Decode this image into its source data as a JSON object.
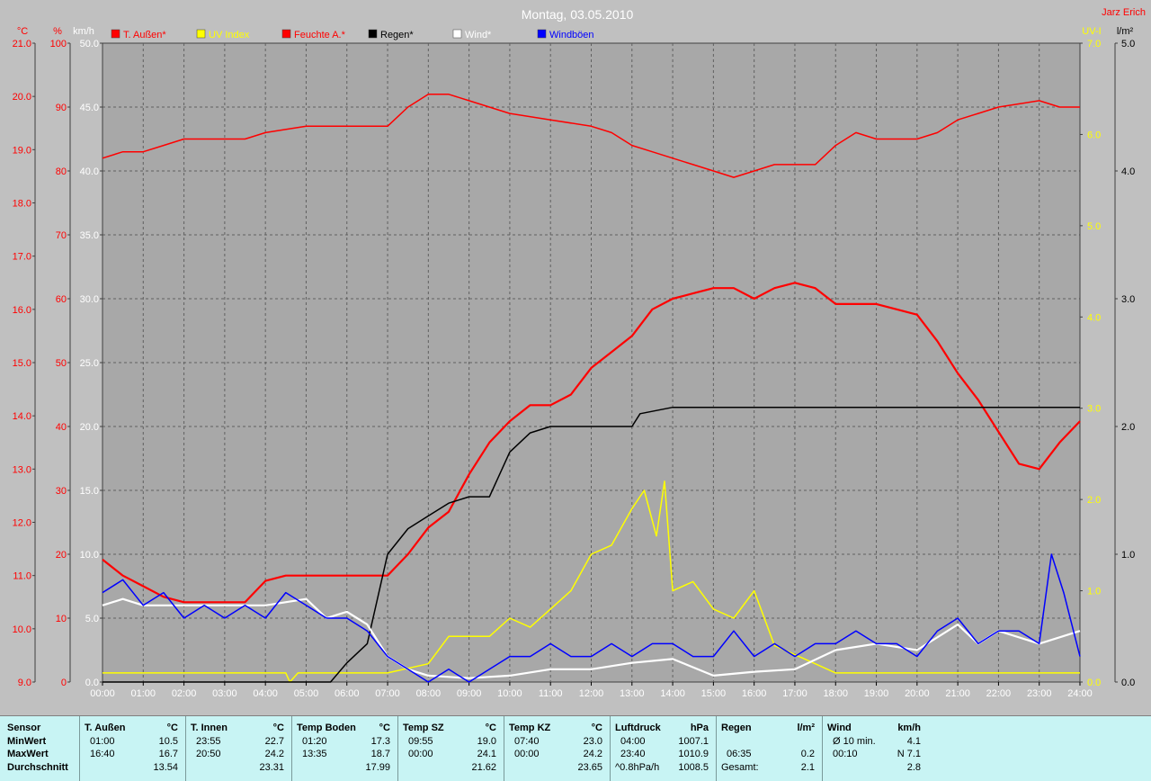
{
  "title": "Montag, 03.05.2010",
  "author": "Jarz Erich",
  "axis_units": {
    "temp": "°C",
    "humidity": "%",
    "wind": "km/h",
    "uv": "UV-I",
    "rain": "l/m²"
  },
  "legend": [
    {
      "label": "T. Außen*",
      "color": "#ff0000"
    },
    {
      "label": "UV Index",
      "color": "#ffff00"
    },
    {
      "label": "Feuchte A.*",
      "color": "#ff0000"
    },
    {
      "label": "Regen*",
      "color": "#000000"
    },
    {
      "label": "Wind*",
      "color": "#ffffff"
    },
    {
      "label": "Windböen",
      "color": "#0000ff"
    }
  ],
  "chart_data": {
    "type": "line",
    "title": "Montag, 03.05.2010",
    "x_ticks": [
      "00:00",
      "01:00",
      "02:00",
      "03:00",
      "04:00",
      "05:00",
      "06:00",
      "07:00",
      "08:00",
      "09:00",
      "10:00",
      "11:00",
      "12:00",
      "13:00",
      "14:00",
      "15:00",
      "16:00",
      "17:00",
      "18:00",
      "19:00",
      "20:00",
      "21:00",
      "22:00",
      "23:00",
      "24:00"
    ],
    "axes": {
      "temp": {
        "range": [
          9.0,
          21.0
        ],
        "ticks": [
          "21.0",
          "20.0",
          "19.0",
          "18.0",
          "17.0",
          "16.0",
          "15.0",
          "14.0",
          "13.0",
          "12.0",
          "11.0",
          "10.0",
          "9.0"
        ]
      },
      "humidity": {
        "range": [
          0,
          100
        ],
        "ticks": [
          "100",
          "90",
          "80",
          "70",
          "60",
          "50",
          "40",
          "30",
          "20",
          "10",
          "0"
        ]
      },
      "wind": {
        "range": [
          0,
          50
        ],
        "ticks": [
          "50.0",
          "45.0",
          "40.0",
          "35.0",
          "30.0",
          "25.0",
          "20.0",
          "15.0",
          "10.0",
          "5.0",
          "0.0"
        ]
      },
      "uv": {
        "range": [
          0,
          7
        ],
        "ticks": [
          "7.0",
          "6.0",
          "5.0",
          "4.0",
          "3.0",
          "2.0",
          "1.0",
          "0.0"
        ]
      },
      "rain": {
        "range": [
          0,
          5
        ],
        "ticks": [
          "5.0",
          "4.0",
          "3.0",
          "2.0",
          "1.0",
          "0.0"
        ]
      }
    },
    "grid": true,
    "legend_position": "top",
    "series": [
      {
        "name": "T. Außen*",
        "axis": "temp",
        "color": "#ff0000",
        "points": [
          [
            0,
            11.3
          ],
          [
            0.5,
            11.0
          ],
          [
            1,
            10.8
          ],
          [
            1.5,
            10.6
          ],
          [
            2,
            10.5
          ],
          [
            3,
            10.5
          ],
          [
            3.5,
            10.5
          ],
          [
            4,
            10.9
          ],
          [
            4.5,
            11.0
          ],
          [
            5,
            11.0
          ],
          [
            6,
            11.0
          ],
          [
            7,
            11.0
          ],
          [
            7.5,
            11.4
          ],
          [
            8,
            11.9
          ],
          [
            8.5,
            12.2
          ],
          [
            9,
            12.9
          ],
          [
            9.5,
            13.5
          ],
          [
            10,
            13.9
          ],
          [
            10.5,
            14.2
          ],
          [
            11,
            14.2
          ],
          [
            11.5,
            14.4
          ],
          [
            12,
            14.9
          ],
          [
            12.5,
            15.2
          ],
          [
            13,
            15.5
          ],
          [
            13.5,
            16.0
          ],
          [
            14,
            16.2
          ],
          [
            14.5,
            16.3
          ],
          [
            15,
            16.4
          ],
          [
            15.5,
            16.4
          ],
          [
            16,
            16.2
          ],
          [
            16.5,
            16.4
          ],
          [
            17,
            16.5
          ],
          [
            17.5,
            16.4
          ],
          [
            18,
            16.1
          ],
          [
            18.5,
            16.1
          ],
          [
            19,
            16.1
          ],
          [
            19.5,
            16.0
          ],
          [
            20,
            15.9
          ],
          [
            20.5,
            15.4
          ],
          [
            21,
            14.8
          ],
          [
            21.5,
            14.3
          ],
          [
            22,
            13.7
          ],
          [
            22.5,
            13.1
          ],
          [
            23,
            13.0
          ],
          [
            23.5,
            13.5
          ],
          [
            24,
            13.9
          ]
        ]
      },
      {
        "name": "Feuchte A.*",
        "axis": "humidity",
        "color": "#ff0000",
        "points": [
          [
            0,
            82
          ],
          [
            0.5,
            83
          ],
          [
            1,
            83
          ],
          [
            1.5,
            84
          ],
          [
            2,
            85
          ],
          [
            3,
            85
          ],
          [
            3.5,
            85
          ],
          [
            4,
            86
          ],
          [
            5,
            87
          ],
          [
            6,
            87
          ],
          [
            7,
            87
          ],
          [
            7.5,
            90
          ],
          [
            8,
            92
          ],
          [
            8.5,
            92
          ],
          [
            9,
            91
          ],
          [
            10,
            89
          ],
          [
            11,
            88
          ],
          [
            12,
            87
          ],
          [
            12.5,
            86
          ],
          [
            13,
            84
          ],
          [
            13.5,
            83
          ],
          [
            14,
            82
          ],
          [
            14.5,
            81
          ],
          [
            15,
            80
          ],
          [
            15.5,
            79
          ],
          [
            16,
            80
          ],
          [
            16.5,
            81
          ],
          [
            17,
            81
          ],
          [
            17.5,
            81
          ],
          [
            18,
            84
          ],
          [
            18.5,
            86
          ],
          [
            19,
            85
          ],
          [
            19.5,
            85
          ],
          [
            20,
            85
          ],
          [
            20.5,
            86
          ],
          [
            21,
            88
          ],
          [
            21.5,
            89
          ],
          [
            22,
            90
          ],
          [
            23,
            91
          ],
          [
            23.5,
            90
          ],
          [
            24,
            90
          ]
        ]
      },
      {
        "name": "UV Index",
        "axis": "uv",
        "color": "#ffff00",
        "points": [
          [
            0,
            0.1
          ],
          [
            4.5,
            0.1
          ],
          [
            4.6,
            0.0
          ],
          [
            4.8,
            0.1
          ],
          [
            7,
            0.1
          ],
          [
            8,
            0.2
          ],
          [
            8.5,
            0.5
          ],
          [
            9,
            0.5
          ],
          [
            9.5,
            0.5
          ],
          [
            10,
            0.7
          ],
          [
            10.5,
            0.6
          ],
          [
            11,
            0.8
          ],
          [
            11.5,
            1.0
          ],
          [
            12,
            1.4
          ],
          [
            12.5,
            1.5
          ],
          [
            13,
            1.9
          ],
          [
            13.3,
            2.1
          ],
          [
            13.6,
            1.6
          ],
          [
            13.8,
            2.2
          ],
          [
            14,
            1.0
          ],
          [
            14.5,
            1.1
          ],
          [
            15,
            0.8
          ],
          [
            15.5,
            0.7
          ],
          [
            16,
            1.0
          ],
          [
            16.5,
            0.4
          ],
          [
            17,
            0.3
          ],
          [
            17.5,
            0.2
          ],
          [
            18,
            0.1
          ],
          [
            19,
            0.1
          ],
          [
            20,
            0.1
          ],
          [
            21,
            0.1
          ],
          [
            22,
            0.1
          ],
          [
            23,
            0.1
          ],
          [
            24,
            0.1
          ]
        ]
      },
      {
        "name": "Regen*",
        "axis": "rain",
        "color": "#000000",
        "points": [
          [
            0,
            0
          ],
          [
            5.6,
            0
          ],
          [
            6,
            0.15
          ],
          [
            6.5,
            0.3
          ],
          [
            7,
            1.0
          ],
          [
            7.5,
            1.2
          ],
          [
            8,
            1.3
          ],
          [
            8.5,
            1.4
          ],
          [
            9,
            1.45
          ],
          [
            9.5,
            1.45
          ],
          [
            10,
            1.8
          ],
          [
            10.5,
            1.95
          ],
          [
            11,
            2.0
          ],
          [
            12,
            2.0
          ],
          [
            13,
            2.0
          ],
          [
            13.2,
            2.1
          ],
          [
            14,
            2.15
          ],
          [
            24,
            2.15
          ]
        ]
      },
      {
        "name": "Wind*",
        "axis": "wind",
        "color": "#ffffff",
        "points": [
          [
            0,
            6
          ],
          [
            0.5,
            6.5
          ],
          [
            1,
            6
          ],
          [
            2,
            6
          ],
          [
            3,
            6
          ],
          [
            4,
            6
          ],
          [
            5,
            6.5
          ],
          [
            5.5,
            5
          ],
          [
            6,
            5.5
          ],
          [
            6.5,
            4.5
          ],
          [
            7,
            2
          ],
          [
            7.5,
            1
          ],
          [
            8,
            0.5
          ],
          [
            9,
            0.3
          ],
          [
            10,
            0.5
          ],
          [
            11,
            1
          ],
          [
            12,
            1
          ],
          [
            13,
            1.5
          ],
          [
            14,
            1.8
          ],
          [
            15,
            0.5
          ],
          [
            16,
            0.8
          ],
          [
            17,
            1
          ],
          [
            18,
            2.5
          ],
          [
            19,
            3
          ],
          [
            20,
            2.5
          ],
          [
            21,
            4.5
          ],
          [
            21.5,
            3
          ],
          [
            22,
            4
          ],
          [
            23,
            3
          ],
          [
            24,
            4
          ]
        ]
      },
      {
        "name": "Windböen",
        "axis": "wind",
        "color": "#0000ff",
        "points": [
          [
            0,
            7
          ],
          [
            0.5,
            8
          ],
          [
            1,
            6
          ],
          [
            1.5,
            7
          ],
          [
            2,
            5
          ],
          [
            2.5,
            6
          ],
          [
            3,
            5
          ],
          [
            3.5,
            6
          ],
          [
            4,
            5
          ],
          [
            4.5,
            7
          ],
          [
            5,
            6
          ],
          [
            5.5,
            5
          ],
          [
            6,
            5
          ],
          [
            6.5,
            4
          ],
          [
            7,
            2
          ],
          [
            7.5,
            1
          ],
          [
            8,
            0
          ],
          [
            8.5,
            1
          ],
          [
            9,
            0
          ],
          [
            9.5,
            1
          ],
          [
            10,
            2
          ],
          [
            10.5,
            2
          ],
          [
            11,
            3
          ],
          [
            11.5,
            2
          ],
          [
            12,
            2
          ],
          [
            12.5,
            3
          ],
          [
            13,
            2
          ],
          [
            13.5,
            3
          ],
          [
            14,
            3
          ],
          [
            14.5,
            2
          ],
          [
            15,
            2
          ],
          [
            15.5,
            4
          ],
          [
            16,
            2
          ],
          [
            16.5,
            3
          ],
          [
            17,
            2
          ],
          [
            17.5,
            3
          ],
          [
            18,
            3
          ],
          [
            18.5,
            4
          ],
          [
            19,
            3
          ],
          [
            19.5,
            3
          ],
          [
            20,
            2
          ],
          [
            20.5,
            4
          ],
          [
            21,
            5
          ],
          [
            21.5,
            3
          ],
          [
            22,
            4
          ],
          [
            22.5,
            4
          ],
          [
            23,
            3
          ],
          [
            23.3,
            10
          ],
          [
            23.6,
            7
          ],
          [
            24,
            2
          ]
        ]
      }
    ]
  },
  "stats": {
    "row_labels": [
      "Sensor",
      "MinWert",
      "MaxWert",
      "Durchschnitt"
    ],
    "columns": [
      {
        "name": "T. Außen",
        "unit": "°C",
        "min_time": "01:00",
        "min_val": "10.5",
        "max_time": "16:40",
        "max_val": "16.7",
        "avg_label": "",
        "avg": "13.54"
      },
      {
        "name": "T. Innen",
        "unit": "°C",
        "min_time": "23:55",
        "min_val": "22.7",
        "max_time": "20:50",
        "max_val": "24.2",
        "avg_label": "",
        "avg": "23.31"
      },
      {
        "name": "Temp Boden",
        "unit": "°C",
        "min_time": "01:20",
        "min_val": "17.3",
        "max_time": "13:35",
        "max_val": "18.7",
        "avg_label": "",
        "avg": "17.99"
      },
      {
        "name": "Temp SZ",
        "unit": "°C",
        "min_time": "09:55",
        "min_val": "19.0",
        "max_time": "00:00",
        "max_val": "24.1",
        "avg_label": "",
        "avg": "21.62"
      },
      {
        "name": "Temp KZ",
        "unit": "°C",
        "min_time": "07:40",
        "min_val": "23.0",
        "max_time": "00:00",
        "max_val": "24.2",
        "avg_label": "",
        "avg": "23.65"
      },
      {
        "name": "Luftdruck",
        "unit": "hPa",
        "min_time": "04:00",
        "min_val": "1007.1",
        "max_time": "23:40",
        "max_val": "1010.9",
        "avg_label": "^0.8hPa/h",
        "avg": "1008.5"
      },
      {
        "name": "Regen",
        "unit": "l/m²",
        "min_time": "",
        "min_val": "",
        "max_time": "06:35",
        "max_val": "0.2",
        "avg_label": "Gesamt:",
        "avg": "2.1"
      },
      {
        "name": "Wind",
        "unit": "km/h",
        "min_time": "Ø 10 min.",
        "min_val": "4.1",
        "max_time": "00:10",
        "max_val": "N 7.1",
        "avg_label": "",
        "avg": "2.8"
      }
    ]
  }
}
